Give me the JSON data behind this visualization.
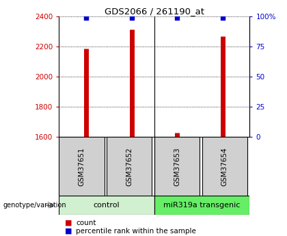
{
  "title": "GDS2066 / 261190_at",
  "samples": [
    "GSM37651",
    "GSM37652",
    "GSM37653",
    "GSM37654"
  ],
  "counts": [
    2185,
    2315,
    1630,
    2270
  ],
  "percentiles": [
    99,
    99,
    99,
    99
  ],
  "group_labels": [
    "control",
    "miR319a transgenic"
  ],
  "group_colors": [
    "#d0f0d0",
    "#66ee66"
  ],
  "sample_box_color": "#d0d0d0",
  "ylim": [
    1600,
    2400
  ],
  "yticks": [
    1600,
    1800,
    2000,
    2200,
    2400
  ],
  "right_yticks": [
    0,
    25,
    50,
    75,
    100
  ],
  "bar_color": "#cc0000",
  "dot_color": "#0000cc",
  "left_tick_color": "#cc0000",
  "right_tick_color": "#0000cc",
  "plot_bg": "#ffffff",
  "genotype_label": "genotype/variation",
  "legend_count_color": "#cc0000",
  "legend_pct_color": "#0000cc"
}
